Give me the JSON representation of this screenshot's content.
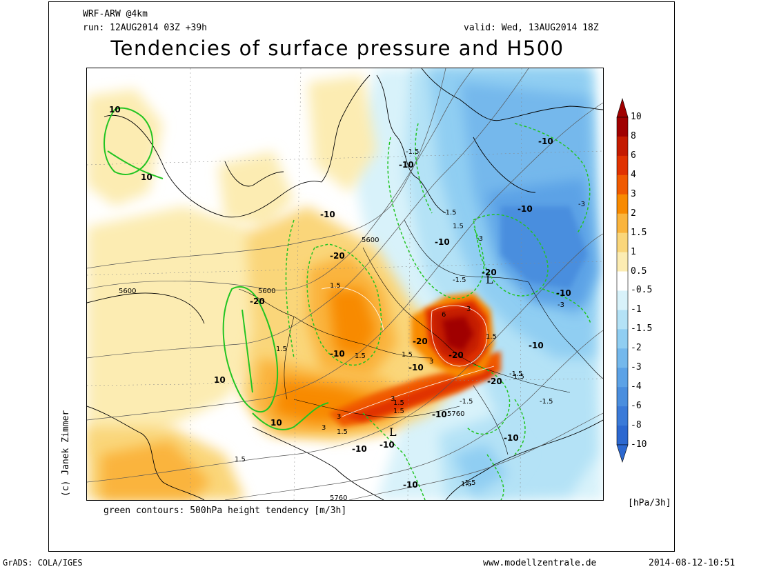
{
  "header": {
    "model": "WRF-ARW @4km",
    "run": "run: 12AUG2014 03Z +39h",
    "valid": "valid: Wed, 13AUG2014 18Z",
    "title": "Tendencies of surface pressure and H500"
  },
  "footer": {
    "contours_note": "green contours: 500hPa height tendency [m/3h]",
    "grads": "GrADS: COLA/IGES",
    "website": "www.modellzentrale.de",
    "timestamp": "2014-08-12-10:51",
    "credit": "(c) Janek Zimmer"
  },
  "colorbar": {
    "unit": "[hPa/3h]",
    "levels": [
      "10",
      "8",
      "6",
      "4",
      "3",
      "2",
      "1.5",
      "1",
      "0.5",
      "-0.5",
      "-1",
      "-1.5",
      "-2",
      "-3",
      "-4",
      "-6",
      "-8",
      "-10"
    ],
    "colors": [
      "#a00000",
      "#c41a00",
      "#e03200",
      "#f05a00",
      "#f88a00",
      "#fab43c",
      "#fad67a",
      "#fcecb2",
      "#ffffff",
      "#d8f2fa",
      "#b4e2f6",
      "#90cef2",
      "#74b8ec",
      "#5ca2e6",
      "#4a8ede",
      "#3a7ad8",
      "#2c68d0"
    ]
  },
  "map": {
    "height_labels": [
      "5600",
      "5600",
      "5600",
      "5760",
      "5760"
    ],
    "low_centers": [
      "L",
      "L"
    ],
    "pressure_labels": [
      "-20",
      "-20",
      "-20",
      "-20",
      "-20",
      "-20",
      "-10",
      "-10",
      "-10",
      "-10",
      "-10",
      "-10",
      "-10",
      "-10",
      "-10",
      "-10",
      "-10",
      "-10",
      "-10",
      "-10",
      "10",
      "10",
      "10",
      "10",
      "1.5",
      "1.5",
      "1.5",
      "1.5",
      "1.5",
      "1.5",
      "1.5",
      "1.5",
      "1.5",
      "1.5",
      "1.5",
      "1.5",
      "-1.5",
      "-1.5",
      "-1.5",
      "-1.5",
      "-1.5",
      "-1.5",
      "-1.5",
      "-3",
      "-3",
      "-3",
      "3",
      "3",
      "3",
      "3",
      "3",
      "6"
    ]
  }
}
